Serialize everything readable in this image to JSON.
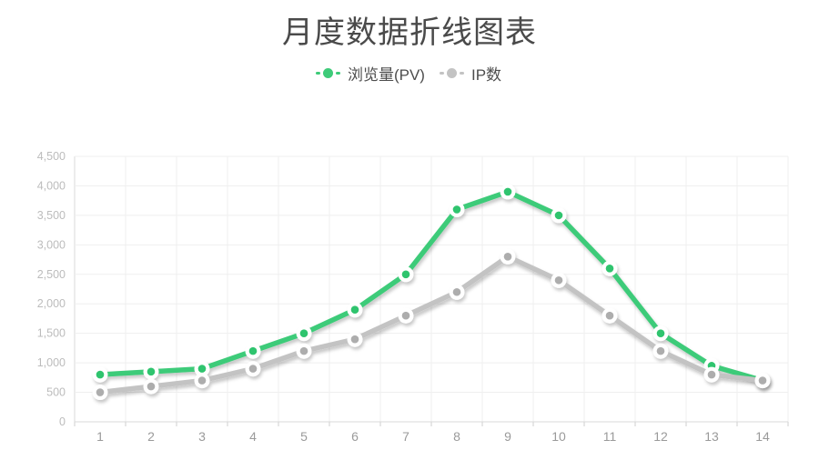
{
  "title": {
    "text": "月度数据折线图表",
    "color": "#4a4a4a"
  },
  "legend": [
    {
      "label": "浏览量(PV)",
      "color": "#3ecb79",
      "series": "pv"
    },
    {
      "label": "IP数",
      "color": "#c3c3c3",
      "series": "ip"
    }
  ],
  "chart_data": {
    "type": "line",
    "title": "月度数据折线图表",
    "categories": [
      "1",
      "2",
      "3",
      "4",
      "5",
      "6",
      "7",
      "8",
      "9",
      "10",
      "11",
      "12",
      "13",
      "14"
    ],
    "series": [
      {
        "name": "浏览量(PV)",
        "color": "#3ecb79",
        "dot_color": "#2fc46e",
        "values": [
          800,
          850,
          900,
          1200,
          1500,
          1900,
          2500,
          3600,
          3900,
          3500,
          2600,
          1500,
          950,
          700
        ]
      },
      {
        "name": "IP数",
        "color": "#c3c3c3",
        "dot_color": "#adadad",
        "values": [
          500,
          600,
          700,
          900,
          1200,
          1400,
          1800,
          2200,
          2800,
          2400,
          1800,
          1200,
          800,
          700
        ]
      }
    ],
    "xlabel": "",
    "ylabel": "",
    "ylim": [
      0,
      4500
    ],
    "ytick_values": [
      0,
      500,
      1000,
      1500,
      2000,
      2500,
      3000,
      3500,
      4000,
      4500
    ],
    "ytick_labels": [
      "0",
      "500",
      "1,000",
      "1,500",
      "2,000",
      "2,500",
      "3,000",
      "3,500",
      "4,000",
      "4,500"
    ],
    "grid": true,
    "legend_position": "top"
  },
  "axis": {
    "grid_color": "#efefef",
    "axis_color": "#d9d9d9",
    "tick_color": "#cfcfcf",
    "y_label_color": "#bcbcbc",
    "x_label_color": "#9a9a9a"
  }
}
